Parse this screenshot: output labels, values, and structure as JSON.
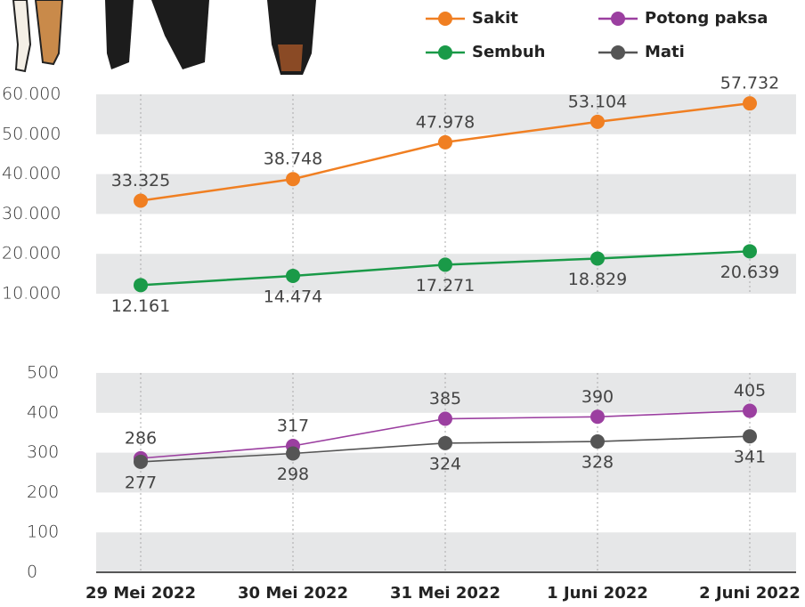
{
  "chart_data": [
    {
      "type": "line",
      "series": [
        {
          "name": "Sakit",
          "color": "#f07f22",
          "values": [
            33325,
            38748,
            47978,
            53104,
            57732
          ],
          "value_labels": [
            "33.325",
            "38.748",
            "47.978",
            "53.104",
            "57.732"
          ]
        },
        {
          "name": "Sembuh",
          "color": "#1a9a48",
          "values": [
            12161,
            14474,
            17271,
            18829,
            20639
          ],
          "value_labels": [
            "12.161",
            "14.474",
            "17.271",
            "18.829",
            "20.639"
          ]
        }
      ],
      "ylim": [
        10000,
        60000
      ],
      "yticks": [
        {
          "value": 10000,
          "label": "10.000"
        },
        {
          "value": 20000,
          "label": "20.000"
        },
        {
          "value": 30000,
          "label": "30.000"
        },
        {
          "value": 40000,
          "label": "40.000"
        },
        {
          "value": 50000,
          "label": "50.000"
        },
        {
          "value": 60000,
          "label": "60.000"
        }
      ],
      "grid": true
    },
    {
      "type": "line",
      "categories": [
        "29 Mei 2022",
        "30 Mei 2022",
        "31 Mei 2022",
        "1 Juni 2022",
        "2 Juni 2022"
      ],
      "series": [
        {
          "name": "Potong paksa",
          "color": "#9b3fa0",
          "values": [
            286,
            317,
            385,
            390,
            405
          ]
        },
        {
          "name": "Mati",
          "color": "#555555",
          "values": [
            277,
            298,
            324,
            328,
            341
          ]
        }
      ],
      "ylim": [
        0,
        500
      ],
      "yticks": [
        0,
        100,
        200,
        300,
        400,
        500
      ],
      "grid": true
    }
  ]
}
